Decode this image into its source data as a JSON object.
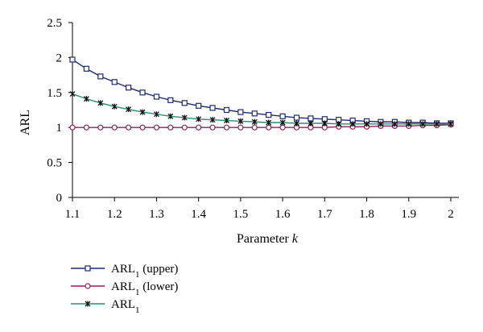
{
  "chart_data": {
    "type": "line",
    "title": "",
    "xlabel": "Parameter",
    "xlabel_italic": "k",
    "ylabel": "ARL",
    "xlim": [
      1.1,
      2.0
    ],
    "ylim": [
      0,
      2.5
    ],
    "xticks": [
      "1.1",
      "1.2",
      "1.3",
      "1.4",
      "1.5",
      "1.6",
      "1.7",
      "1.8",
      "1.9",
      "2"
    ],
    "yticks": [
      "0",
      "0.5",
      "1",
      "1.5",
      "2",
      "2.5"
    ],
    "grid": false,
    "legend_position": "bottom-left",
    "x": [
      1.1,
      1.1333,
      1.1667,
      1.2,
      1.2333,
      1.2667,
      1.3,
      1.3333,
      1.3667,
      1.4,
      1.4333,
      1.4667,
      1.5,
      1.5333,
      1.5667,
      1.6,
      1.6333,
      1.6667,
      1.7,
      1.7333,
      1.7667,
      1.8,
      1.8333,
      1.8667,
      1.9,
      1.9333,
      1.9667,
      2.0
    ],
    "series": [
      {
        "name": "ARL",
        "name_sub": "1",
        "name_suffix": " (upper)",
        "color": "#1f2a6b",
        "marker": "square",
        "values": [
          1.97,
          1.84,
          1.73,
          1.65,
          1.57,
          1.5,
          1.44,
          1.39,
          1.35,
          1.31,
          1.28,
          1.25,
          1.22,
          1.2,
          1.18,
          1.16,
          1.14,
          1.13,
          1.12,
          1.11,
          1.1,
          1.09,
          1.08,
          1.08,
          1.07,
          1.07,
          1.06,
          1.06
        ]
      },
      {
        "name": "ARL",
        "name_sub": "1",
        "name_suffix": " (lower)",
        "color": "#9b1b5a",
        "marker": "circle",
        "values": [
          1.0,
          1.0,
          1.0,
          1.0,
          1.0,
          1.0,
          1.0,
          1.0,
          1.0,
          1.0,
          1.0,
          1.0,
          1.0,
          1.0,
          1.0,
          1.0,
          1.0,
          1.0,
          1.0,
          1.01,
          1.01,
          1.01,
          1.02,
          1.02,
          1.02,
          1.03,
          1.03,
          1.04
        ]
      },
      {
        "name": "ARL",
        "name_sub": "1",
        "name_suffix": "",
        "color": "#2f8a72",
        "marker": "star",
        "values": [
          1.48,
          1.41,
          1.35,
          1.3,
          1.26,
          1.22,
          1.19,
          1.16,
          1.14,
          1.12,
          1.11,
          1.1,
          1.09,
          1.08,
          1.07,
          1.07,
          1.06,
          1.06,
          1.06,
          1.05,
          1.05,
          1.05,
          1.05,
          1.05,
          1.05,
          1.05,
          1.05,
          1.05
        ]
      }
    ]
  }
}
